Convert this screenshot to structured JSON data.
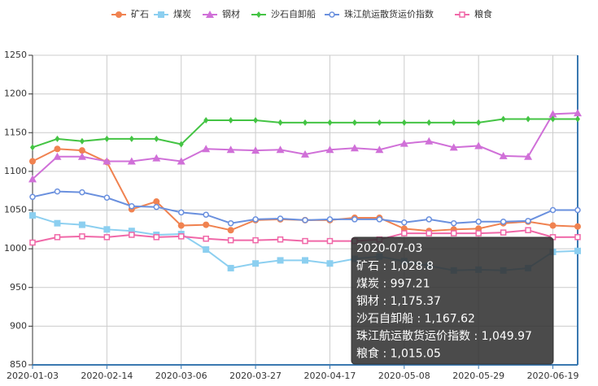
{
  "chart_data": {
    "type": "line",
    "categories": [
      "2020-01-03",
      null,
      null,
      "2020-02-14",
      null,
      null,
      "2020-03-06",
      null,
      null,
      "2020-03-27",
      null,
      null,
      "2020-04-17",
      null,
      null,
      "2020-05-08",
      null,
      null,
      "2020-05-29",
      null,
      null,
      "2020-06-19",
      "2020-07-03"
    ],
    "ylim": [
      850,
      1250
    ],
    "yticks": [
      850,
      900,
      950,
      1000,
      1050,
      1100,
      1150,
      1200,
      1250
    ],
    "grid": true,
    "legend": "top",
    "series": [
      {
        "name": "矿石",
        "color": "#f08250",
        "marker": "circle",
        "values": [
          1113,
          1129,
          1127,
          1112,
          1051,
          1061,
          1030,
          1031,
          1024,
          1037,
          1038,
          1037,
          1037,
          1040,
          1040,
          1026,
          1023,
          1025,
          1026,
          1033,
          1035,
          1030,
          1028.8
        ]
      },
      {
        "name": "煤炭",
        "color": "#8ccff0",
        "marker": "square",
        "values": [
          1043,
          1033,
          1031,
          1025,
          1023,
          1018,
          1019,
          999,
          975,
          981,
          985,
          985,
          981,
          987,
          990,
          984,
          978,
          972,
          973,
          972,
          975,
          996,
          997.21
        ]
      },
      {
        "name": "钢材",
        "color": "#d070d8",
        "marker": "triangle",
        "values": [
          1090,
          1119,
          1119,
          1113,
          1113,
          1117,
          1113,
          1129,
          1128,
          1127,
          1128,
          1122,
          1128,
          1130,
          1128,
          1136,
          1139,
          1131,
          1133,
          1120,
          1119,
          1174,
          1175.37
        ]
      },
      {
        "name": "沙石自卸船",
        "color": "#44c444",
        "marker": "diamond",
        "values": [
          1131,
          1142,
          1139,
          1142,
          1142,
          1142,
          1135,
          1166,
          1166,
          1166,
          1163,
          1163,
          1163,
          1163,
          1163,
          1163,
          1163,
          1163,
          1163,
          1167.62,
          1167.62,
          1167.62,
          1167.62
        ]
      },
      {
        "name": "珠江航运散货运价指数",
        "color": "#6a90de",
        "marker": "emptyCircle",
        "values": [
          1067,
          1074,
          1073,
          1066,
          1055,
          1054,
          1047,
          1044,
          1033,
          1038,
          1039,
          1037,
          1038,
          1038,
          1038,
          1034,
          1038,
          1033,
          1035,
          1035,
          1036,
          1050,
          1049.97
        ]
      },
      {
        "name": "粮食",
        "color": "#f068a8",
        "marker": "emptySquare",
        "values": [
          1008,
          1015,
          1016,
          1015,
          1018,
          1015,
          1016,
          1013,
          1011,
          1011,
          1012,
          1010,
          1010,
          1010,
          1012,
          1020,
          1020,
          1020,
          1020,
          1021,
          1024,
          1015,
          1015.05
        ]
      }
    ],
    "tooltip": {
      "index": 22,
      "separator": " : ",
      "value_labels": [
        "1,028.8",
        "997.21",
        "1,175.37",
        "1,167.62",
        "1,049.97",
        "1,015.05"
      ]
    }
  }
}
